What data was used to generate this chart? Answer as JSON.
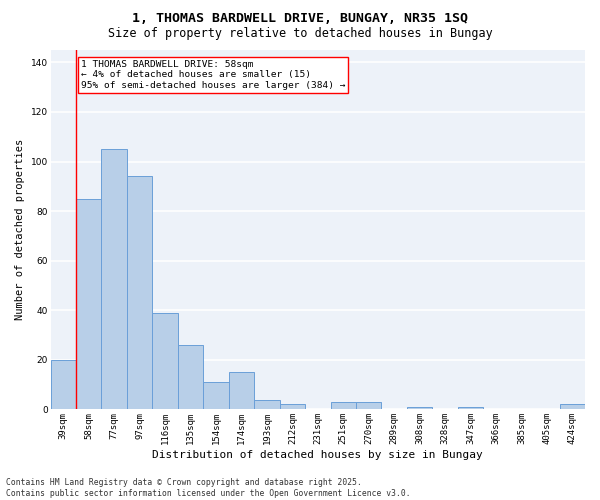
{
  "title": "1, THOMAS BARDWELL DRIVE, BUNGAY, NR35 1SQ",
  "subtitle": "Size of property relative to detached houses in Bungay",
  "xlabel": "Distribution of detached houses by size in Bungay",
  "ylabel": "Number of detached properties",
  "categories": [
    "39sqm",
    "58sqm",
    "77sqm",
    "97sqm",
    "116sqm",
    "135sqm",
    "154sqm",
    "174sqm",
    "193sqm",
    "212sqm",
    "231sqm",
    "251sqm",
    "270sqm",
    "289sqm",
    "308sqm",
    "328sqm",
    "347sqm",
    "366sqm",
    "385sqm",
    "405sqm",
    "424sqm"
  ],
  "bar_values": [
    20,
    85,
    105,
    94,
    39,
    26,
    11,
    15,
    4,
    2,
    0,
    3,
    3,
    0,
    1,
    0,
    1,
    0,
    0,
    0,
    2
  ],
  "bar_color": "#b8cfe8",
  "bar_edge_color": "#6a9fd8",
  "bg_color": "#edf2f9",
  "grid_color": "#ffffff",
  "red_line_index": 1,
  "annotation_text": "1 THOMAS BARDWELL DRIVE: 58sqm\n← 4% of detached houses are smaller (15)\n95% of semi-detached houses are larger (384) →",
  "ylim": [
    0,
    145
  ],
  "yticks": [
    0,
    20,
    40,
    60,
    80,
    100,
    120,
    140
  ],
  "footer": "Contains HM Land Registry data © Crown copyright and database right 2025.\nContains public sector information licensed under the Open Government Licence v3.0.",
  "title_fontsize": 9.5,
  "subtitle_fontsize": 8.5,
  "xlabel_fontsize": 8,
  "ylabel_fontsize": 7.5,
  "tick_fontsize": 6.5,
  "annotation_fontsize": 6.8,
  "footer_fontsize": 5.8
}
